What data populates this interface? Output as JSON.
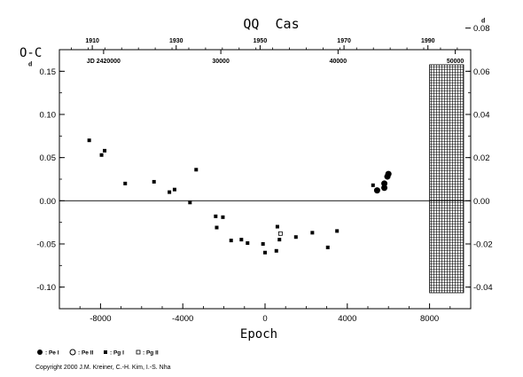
{
  "chart_data": {
    "type": "scatter",
    "title": "QQ  Cas",
    "xlabel": "Epoch",
    "ylabel": "O-C",
    "xlim": [
      -10000,
      10000
    ],
    "ylim": [
      -0.125,
      0.175
    ],
    "x_ticks": [
      "-8000",
      "-4000",
      "0",
      "4000",
      "8000"
    ],
    "y_ticks_left": [
      "-0.10",
      "-0.05",
      "0.00",
      "0.05",
      "0.10",
      "0.15"
    ],
    "y_ticks_left_values": [
      -0.1,
      -0.05,
      0.0,
      0.05,
      0.1,
      0.15
    ],
    "y_ticks_right": [
      "-0.04",
      "-0.02",
      "0.00",
      "0.02",
      "0.04",
      "0.06",
      "0.08"
    ],
    "y_ticks_right_values": [
      -0.04,
      -0.02,
      0.0,
      0.02,
      0.04,
      0.06,
      0.08
    ],
    "right_axis_scale": 0.4,
    "unit_superscript": "d",
    "top_year_ticks": [
      {
        "label": "1910",
        "epoch": -8400
      },
      {
        "label": "1930",
        "epoch": -4320
      },
      {
        "label": "1950",
        "epoch": -240
      },
      {
        "label": "1970",
        "epoch": 3840
      },
      {
        "label": "1990",
        "epoch": 7920
      }
    ],
    "top_jd_ticks": [
      {
        "label": "JD 2420000",
        "epoch": -7850
      },
      {
        "label": "30000",
        "epoch": -2150
      },
      {
        "label": "40000",
        "epoch": 3550
      },
      {
        "label": "50000",
        "epoch": 9250
      }
    ],
    "future_region": [
      8000,
      10000
    ],
    "zero_line": 0,
    "series": [
      {
        "name": "Pe I",
        "marker": "filled-circle",
        "points": [
          {
            "x": 5450,
            "y": 0.012
          },
          {
            "x": 5800,
            "y": 0.015
          },
          {
            "x": 5800,
            "y": 0.02
          },
          {
            "x": 5950,
            "y": 0.028
          },
          {
            "x": 6000,
            "y": 0.031
          }
        ]
      },
      {
        "name": "Pe II",
        "marker": "open-circle",
        "points": []
      },
      {
        "name": "Pg I",
        "marker": "filled-square",
        "points": [
          {
            "x": -8550,
            "y": 0.07
          },
          {
            "x": -7950,
            "y": 0.053
          },
          {
            "x": -7800,
            "y": 0.058
          },
          {
            "x": -6800,
            "y": 0.02
          },
          {
            "x": -5400,
            "y": 0.022
          },
          {
            "x": -4650,
            "y": 0.01
          },
          {
            "x": -4400,
            "y": 0.013
          },
          {
            "x": -3650,
            "y": -0.002
          },
          {
            "x": -3350,
            "y": 0.036
          },
          {
            "x": -2400,
            "y": -0.018
          },
          {
            "x": -2350,
            "y": -0.031
          },
          {
            "x": -2050,
            "y": -0.019
          },
          {
            "x": -1650,
            "y": -0.046
          },
          {
            "x": -1150,
            "y": -0.045
          },
          {
            "x": -850,
            "y": -0.049
          },
          {
            "x": -100,
            "y": -0.05
          },
          {
            "x": 0,
            "y": -0.06
          },
          {
            "x": 550,
            "y": -0.058
          },
          {
            "x": 600,
            "y": -0.03
          },
          {
            "x": 700,
            "y": -0.045
          },
          {
            "x": 1500,
            "y": -0.042
          },
          {
            "x": 2300,
            "y": -0.037
          },
          {
            "x": 3050,
            "y": -0.054
          },
          {
            "x": 3500,
            "y": -0.035
          },
          {
            "x": 5250,
            "y": 0.018
          }
        ]
      },
      {
        "name": "Pg II",
        "marker": "open-square",
        "points": [
          {
            "x": 750,
            "y": -0.038
          }
        ]
      }
    ],
    "legend_position": "bottom-left"
  },
  "labels": {
    "title": "QQ  Cas",
    "ylabel": "O-C",
    "xlabel": "Epoch",
    "copyright": "Copyright 2000 J.M. Kreiner, C.-H. Kim, I.-S. Nha",
    "legend": [
      ": Pe I",
      ": Pe II",
      ": Pg I",
      ": Pg II"
    ]
  }
}
